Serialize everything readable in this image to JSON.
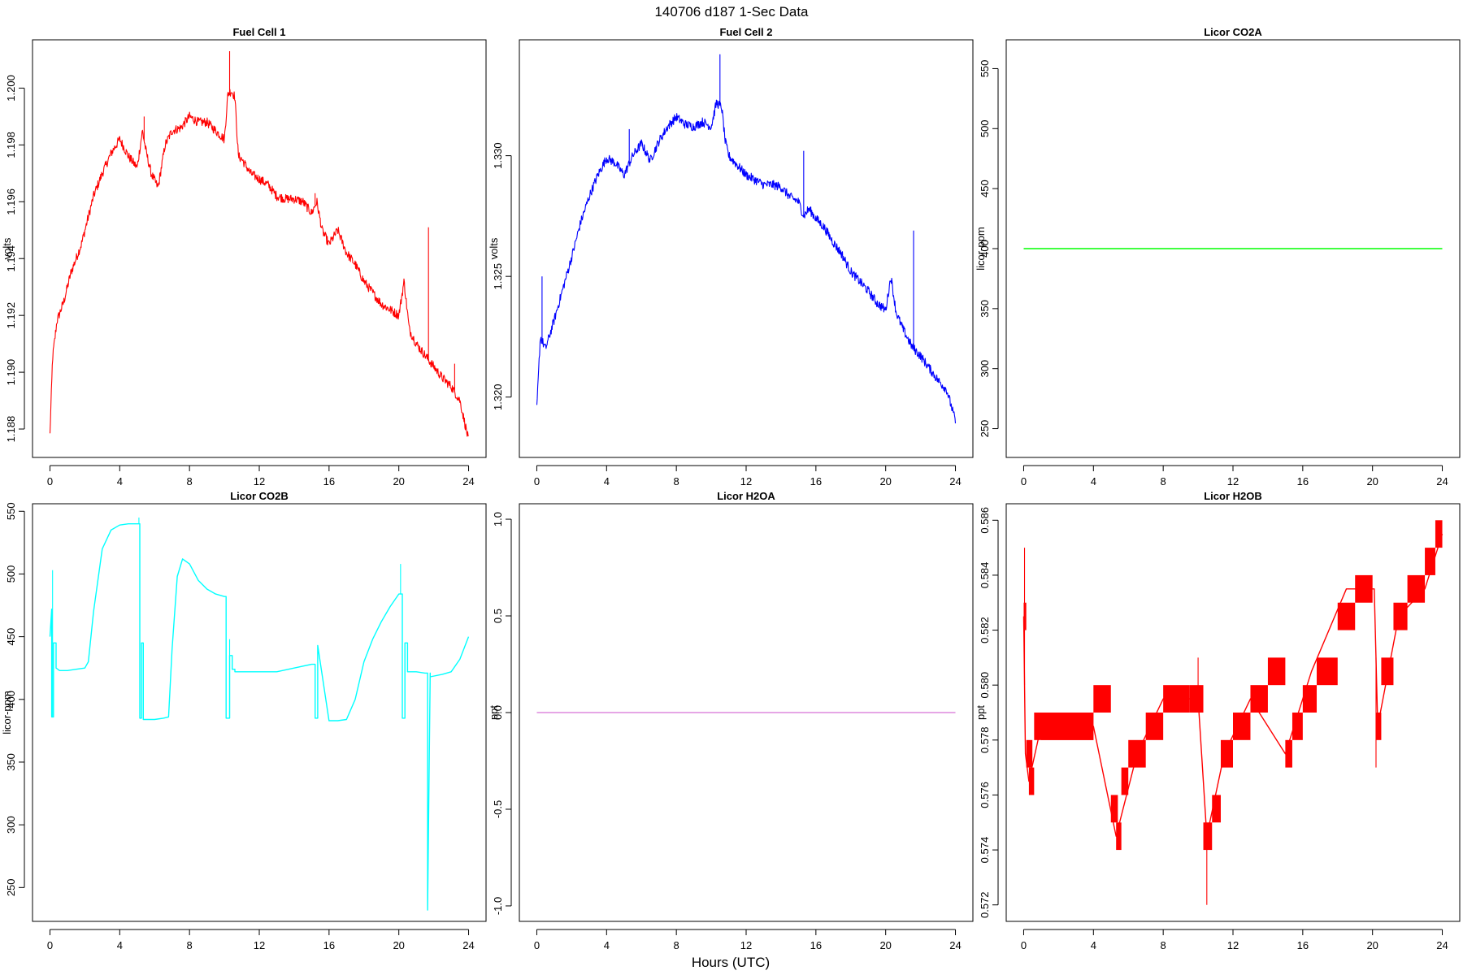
{
  "figure": {
    "title": "140706   d187   1-Sec Data",
    "xlabel": "Hours (UTC)"
  },
  "chart_data": [
    {
      "type": "line",
      "title": "Fuel Cell 1",
      "xlabel": "",
      "ylabel": "volts",
      "color": "#ff0000",
      "xlim": [
        -1,
        25
      ],
      "ylim": [
        1.187,
        1.2017
      ],
      "xticks": [
        0,
        4,
        8,
        12,
        16,
        20,
        24
      ],
      "yticks": [
        1.188,
        1.19,
        1.192,
        1.194,
        1.196,
        1.198,
        1.2
      ],
      "ytick_labels": [
        "1.188",
        "1.190",
        "1.192",
        "1.194",
        "1.196",
        "1.198",
        "1.200"
      ],
      "series": [
        {
          "x": [
            0,
            0.15,
            0.4,
            0.8,
            1.2,
            1.8,
            2.5,
            3.0,
            3.5,
            4.0,
            4.5,
            5.0,
            5.3,
            5.5,
            5.8,
            6.2,
            6.6,
            7.0,
            7.5,
            8.0,
            8.5,
            9.0,
            9.5,
            10.0,
            10.2,
            10.4,
            10.6,
            10.8,
            11.0,
            11.5,
            12.0,
            12.5,
            13.0,
            13.5,
            14.0,
            14.5,
            15.0,
            15.3,
            15.6,
            16.0,
            16.5,
            17.0,
            17.5,
            18.0,
            18.5,
            19.0,
            19.5,
            20.0,
            20.3,
            20.6,
            21.0,
            21.5,
            22.0,
            22.5,
            23.0,
            23.5,
            24.0
          ],
          "y": [
            1.1878,
            1.1905,
            1.1918,
            1.1925,
            1.1935,
            1.1945,
            1.1962,
            1.197,
            1.1977,
            1.1982,
            1.1976,
            1.1972,
            1.1985,
            1.1978,
            1.197,
            1.1965,
            1.198,
            1.1985,
            1.1986,
            1.199,
            1.1988,
            1.1988,
            1.1985,
            1.1982,
            1.1998,
            1.1999,
            1.1997,
            1.1976,
            1.1975,
            1.197,
            1.1968,
            1.1966,
            1.1962,
            1.1961,
            1.1961,
            1.196,
            1.1956,
            1.196,
            1.195,
            1.1945,
            1.195,
            1.1942,
            1.1938,
            1.1932,
            1.1928,
            1.1924,
            1.1922,
            1.192,
            1.1932,
            1.1915,
            1.191,
            1.1906,
            1.1902,
            1.1898,
            1.1895,
            1.189,
            1.1876
          ],
          "spikes": [
            [
              10.3,
              1.2013
            ],
            [
              21.7,
              1.1951
            ],
            [
              5.4,
              1.199
            ],
            [
              15.2,
              1.1963
            ],
            [
              23.2,
              1.1903
            ]
          ]
        }
      ]
    },
    {
      "type": "line",
      "title": "Fuel Cell 2",
      "xlabel": "",
      "ylabel": "volts",
      "color": "#0000ff",
      "xlim": [
        -1,
        25
      ],
      "ylim": [
        1.3175,
        1.3348
      ],
      "xticks": [
        0,
        4,
        8,
        12,
        16,
        20,
        24
      ],
      "yticks": [
        1.32,
        1.325,
        1.33
      ],
      "ytick_labels": [
        "1.320",
        "1.325",
        "1.330"
      ],
      "series": [
        {
          "x": [
            0,
            0.2,
            0.5,
            1.0,
            1.5,
            2.0,
            2.5,
            3.0,
            3.5,
            4.0,
            4.5,
            5.0,
            5.5,
            6.0,
            6.5,
            7.0,
            7.5,
            8.0,
            8.5,
            9.0,
            9.5,
            10.0,
            10.3,
            10.6,
            10.8,
            11.0,
            11.5,
            12.0,
            12.5,
            13.0,
            13.5,
            14.0,
            14.5,
            15.0,
            15.3,
            15.6,
            16.0,
            16.5,
            17.0,
            17.5,
            18.0,
            18.5,
            19.0,
            19.5,
            20.0,
            20.3,
            20.6,
            21.0,
            21.5,
            22.0,
            22.5,
            23.0,
            23.5,
            24.0
          ],
          "y": [
            1.3195,
            1.3225,
            1.322,
            1.3232,
            1.3245,
            1.3258,
            1.3272,
            1.3283,
            1.3292,
            1.3299,
            1.3297,
            1.3292,
            1.33,
            1.3305,
            1.3298,
            1.3306,
            1.3312,
            1.3316,
            1.3313,
            1.3312,
            1.3314,
            1.3312,
            1.3322,
            1.332,
            1.3306,
            1.33,
            1.3296,
            1.3292,
            1.329,
            1.3288,
            1.3288,
            1.3287,
            1.3283,
            1.3281,
            1.3275,
            1.3278,
            1.3274,
            1.327,
            1.3264,
            1.3259,
            1.3252,
            1.3248,
            1.3244,
            1.3239,
            1.3236,
            1.325,
            1.3235,
            1.3228,
            1.3221,
            1.3217,
            1.3212,
            1.3207,
            1.3203,
            1.319
          ],
          "spikes": [
            [
              10.5,
              1.3342
            ],
            [
              15.3,
              1.3302
            ],
            [
              21.6,
              1.3269
            ],
            [
              0.3,
              1.325
            ],
            [
              5.3,
              1.3311
            ]
          ]
        }
      ]
    },
    {
      "type": "line",
      "title": "Licor CO2A",
      "xlabel": "",
      "ylabel": "licor-ppm",
      "color": "#00ff00",
      "xlim": [
        -1,
        25
      ],
      "ylim": [
        226,
        574
      ],
      "xticks": [
        0,
        4,
        8,
        12,
        16,
        20,
        24
      ],
      "yticks": [
        250,
        300,
        350,
        400,
        450,
        500,
        550
      ],
      "ytick_labels": [
        "250",
        "300",
        "350",
        "400",
        "450",
        "500",
        "550"
      ],
      "series": [
        {
          "x": [
            0,
            24
          ],
          "y": [
            400,
            400
          ]
        }
      ]
    },
    {
      "type": "line",
      "title": "Licor CO2B",
      "xlabel": "",
      "ylabel": "licor-ppm",
      "color": "#00ffff",
      "xlim": [
        -1,
        25
      ],
      "ylim": [
        223,
        556
      ],
      "xticks": [
        0,
        4,
        8,
        12,
        16,
        20,
        24
      ],
      "yticks": [
        250,
        300,
        350,
        400,
        450,
        500,
        550
      ],
      "ytick_labels": [
        "250",
        "300",
        "350",
        "400",
        "450",
        "500",
        "550"
      ],
      "series": [
        {
          "x": [
            0,
            0.1,
            0.1,
            0.2,
            0.2,
            0.35,
            0.35,
            0.55,
            0.55,
            0.65,
            0.65,
            1.0,
            1.5,
            2.0,
            2.2,
            2.5,
            3.0,
            3.5,
            4.0,
            4.5,
            5.0,
            5.15,
            5.15,
            5.25,
            5.25,
            5.35,
            5.35,
            6.0,
            6.5,
            6.8,
            7.0,
            7.3,
            7.6,
            8.0,
            8.5,
            9.0,
            9.5,
            10.0,
            10.1,
            10.1,
            10.3,
            10.3,
            10.45,
            10.45,
            10.6,
            10.6,
            11.0,
            12.0,
            13.0,
            14.0,
            15.0,
            15.2,
            15.2,
            15.35,
            15.35,
            16.0,
            16.5,
            17.0,
            17.5,
            18.0,
            18.5,
            19.0,
            19.5,
            20.0,
            20.2,
            20.2,
            20.35,
            20.35,
            20.5,
            20.5,
            21.0,
            21.5,
            21.65,
            21.65,
            21.8,
            21.8,
            22.5,
            23.0,
            23.5,
            24.0
          ],
          "y": [
            450,
            472,
            386,
            386,
            445,
            445,
            425,
            423,
            423,
            423,
            423,
            423,
            424,
            425,
            430,
            470,
            520,
            535,
            539,
            540,
            540,
            540,
            385,
            385,
            445,
            445,
            384,
            384,
            385,
            386,
            440,
            498,
            512,
            508,
            495,
            488,
            484,
            482,
            482,
            385,
            385,
            435,
            435,
            424,
            424,
            422,
            422,
            422,
            422,
            425,
            428,
            428,
            385,
            385,
            443,
            383,
            383,
            384,
            400,
            430,
            448,
            462,
            474,
            484,
            484,
            385,
            385,
            445,
            445,
            422,
            422,
            421,
            421,
            232,
            421,
            418,
            420,
            422,
            432,
            450
          ],
          "spikes": [
            [
              0.15,
              503
            ],
            [
              5.1,
              545
            ],
            [
              20.1,
              508
            ],
            [
              10.3,
              448
            ]
          ]
        }
      ]
    },
    {
      "type": "line",
      "title": "Licor H2OA",
      "xlabel": "",
      "ylabel": "ppt",
      "color": "#dd88dd",
      "xlim": [
        -1,
        25
      ],
      "ylim": [
        -1.08,
        1.08
      ],
      "xticks": [
        0,
        4,
        8,
        12,
        16,
        20,
        24
      ],
      "yticks": [
        -1.0,
        -0.5,
        0.0,
        0.5,
        1.0
      ],
      "ytick_labels": [
        "-1.0",
        "-0.5",
        "0.0",
        "0.5",
        "1.0"
      ],
      "series": [
        {
          "x": [
            0,
            24
          ],
          "y": [
            0,
            0
          ]
        }
      ]
    },
    {
      "type": "line",
      "title": "Licor H2OB",
      "xlabel": "",
      "ylabel": "ppt",
      "color": "#ff0000",
      "xlim": [
        -1,
        25
      ],
      "ylim": [
        0.5714,
        0.5866
      ],
      "xticks": [
        0,
        4,
        8,
        12,
        16,
        20,
        24
      ],
      "yticks": [
        0.572,
        0.574,
        0.576,
        0.578,
        0.58,
        0.582,
        0.584,
        0.586
      ],
      "ytick_labels": [
        "0.572",
        "0.574",
        "0.576",
        "0.578",
        "0.580",
        "0.582",
        "0.584",
        "0.586"
      ],
      "bands": [
        [
          0.0,
          0.15,
          0.582,
          0.583
        ],
        [
          0.15,
          0.5,
          0.577,
          0.578
        ],
        [
          0.3,
          0.6,
          0.576,
          0.577
        ],
        [
          0.6,
          4.0,
          0.578,
          0.579
        ],
        [
          1.0,
          4.0,
          0.578,
          0.579
        ],
        [
          4.0,
          5.0,
          0.579,
          0.58
        ],
        [
          5.0,
          5.4,
          0.575,
          0.576
        ],
        [
          5.3,
          5.6,
          0.574,
          0.575
        ],
        [
          5.6,
          6.0,
          0.576,
          0.577
        ],
        [
          6.0,
          7.0,
          0.577,
          0.578
        ],
        [
          7.0,
          8.0,
          0.578,
          0.579
        ],
        [
          8.0,
          9.5,
          0.579,
          0.58
        ],
        [
          9.5,
          10.3,
          0.579,
          0.58
        ],
        [
          10.3,
          10.8,
          0.574,
          0.575
        ],
        [
          10.8,
          11.3,
          0.575,
          0.576
        ],
        [
          11.3,
          12.0,
          0.577,
          0.578
        ],
        [
          12.0,
          13.0,
          0.578,
          0.579
        ],
        [
          13.0,
          14.0,
          0.579,
          0.58
        ],
        [
          14.0,
          15.0,
          0.58,
          0.581
        ],
        [
          15.0,
          15.4,
          0.577,
          0.578
        ],
        [
          15.4,
          16.0,
          0.578,
          0.579
        ],
        [
          16.0,
          16.8,
          0.579,
          0.58
        ],
        [
          16.8,
          18.0,
          0.58,
          0.581
        ],
        [
          18.0,
          19.0,
          0.582,
          0.583
        ],
        [
          19.0,
          20.0,
          0.583,
          0.584
        ],
        [
          20.2,
          20.5,
          0.578,
          0.579
        ],
        [
          20.5,
          21.2,
          0.58,
          0.581
        ],
        [
          21.2,
          22.0,
          0.582,
          0.583
        ],
        [
          22.0,
          23.0,
          0.583,
          0.584
        ],
        [
          23.0,
          23.6,
          0.584,
          0.585
        ],
        [
          23.6,
          24.0,
          0.585,
          0.586
        ]
      ],
      "series": [
        {
          "x": [
            0,
            0.1,
            0.3,
            1.0,
            4.0,
            5.3,
            6.5,
            8.0,
            10.0,
            10.5,
            11.5,
            13.0,
            15.0,
            16.5,
            18.5,
            20.1,
            20.3,
            21.5,
            23.0,
            24.0
          ],
          "y": [
            0.5825,
            0.5775,
            0.5765,
            0.5785,
            0.5785,
            0.5745,
            0.5775,
            0.5795,
            0.5795,
            0.5745,
            0.5775,
            0.5795,
            0.5775,
            0.5805,
            0.5835,
            0.5835,
            0.5785,
            0.5825,
            0.5835,
            0.5855
          ],
          "spikes": [
            [
              0.05,
              0.585
            ],
            [
              10.5,
              0.572
            ],
            [
              10.0,
              0.581
            ],
            [
              20.2,
              0.577
            ]
          ]
        }
      ]
    }
  ]
}
